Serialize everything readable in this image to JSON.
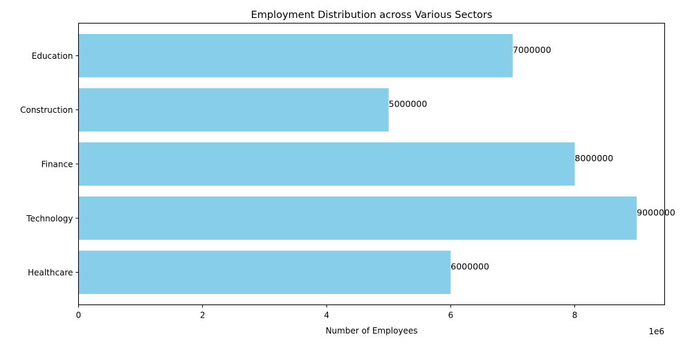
{
  "chart_data": {
    "type": "bar",
    "orientation": "horizontal",
    "title": "Employment Distribution across Various Sectors",
    "xlabel": "Number of Employees",
    "ylabel": "",
    "x_scale_label": "1e6",
    "categories": [
      "Healthcare",
      "Technology",
      "Finance",
      "Construction",
      "Education"
    ],
    "values": [
      6000000,
      9000000,
      8000000,
      5000000,
      7000000
    ],
    "data_labels": [
      "6000000",
      "9000000",
      "8000000",
      "5000000",
      "7000000"
    ],
    "xlim": [
      0,
      9450000
    ],
    "xticks": [
      0,
      2000000,
      4000000,
      6000000,
      8000000
    ],
    "xtick_labels": [
      "0",
      "2",
      "4",
      "6",
      "8"
    ],
    "bar_color": "#87CEEB",
    "grid": false,
    "legend": "none"
  }
}
